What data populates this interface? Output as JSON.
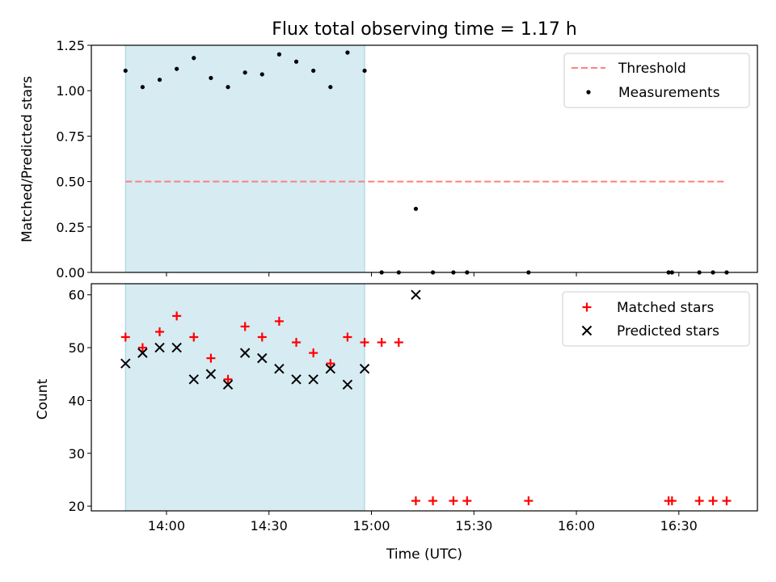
{
  "chart_data": [
    {
      "type": "scatter",
      "title": "Flux total observing time = 1.17 h",
      "ylabel": "Matched/Predicted stars",
      "xlabel": "",
      "ylim": [
        0,
        1.25
      ],
      "yticks": [
        0.0,
        0.25,
        0.5,
        0.75,
        1.0,
        1.25
      ],
      "ytick_labels": [
        "0.00",
        "0.25",
        "0.50",
        "0.75",
        "1.00",
        "1.25"
      ],
      "xlim": [
        "13:38",
        "16:53"
      ],
      "shaded_region": [
        "13:48",
        "14:58"
      ],
      "grid": false,
      "legend": "top-right",
      "threshold": {
        "name": "Threshold",
        "y": 0.5,
        "x_range": [
          "13:48",
          "16:44"
        ],
        "color": "#ff7f7f"
      },
      "series": [
        {
          "name": "Measurements",
          "color": "#000000",
          "x": [
            "13:48",
            "13:53",
            "13:58",
            "14:03",
            "14:08",
            "14:13",
            "14:18",
            "14:23",
            "14:28",
            "14:33",
            "14:38",
            "14:43",
            "14:48",
            "14:53",
            "14:58",
            "15:03",
            "15:08",
            "15:13",
            "15:18",
            "15:24",
            "15:28",
            "15:46",
            "16:27",
            "16:28",
            "16:36",
            "16:40",
            "16:44"
          ],
          "y": [
            1.11,
            1.02,
            1.06,
            1.12,
            1.18,
            1.07,
            1.02,
            1.1,
            1.09,
            1.2,
            1.16,
            1.11,
            1.02,
            1.21,
            1.11,
            0.0,
            0.0,
            0.35,
            0.0,
            0.0,
            0.0,
            0.0,
            0.0,
            0.0,
            0.0,
            0.0,
            0.0
          ]
        }
      ]
    },
    {
      "type": "scatter",
      "title": "",
      "ylabel": "Count",
      "xlabel": "Time (UTC)",
      "ylim": [
        19.1,
        62.1
      ],
      "yticks": [
        20,
        30,
        40,
        50,
        60
      ],
      "ytick_labels": [
        "20",
        "30",
        "40",
        "50",
        "60"
      ],
      "xlim": [
        "13:38",
        "16:53"
      ],
      "xticks": [
        "14:00",
        "14:30",
        "15:00",
        "15:30",
        "16:00",
        "16:30"
      ],
      "shaded_region": [
        "13:48",
        "14:58"
      ],
      "grid": false,
      "legend": "top-right",
      "series": [
        {
          "name": "Matched stars",
          "color": "#ff0000",
          "marker": "+",
          "x": [
            "13:48",
            "13:53",
            "13:58",
            "14:03",
            "14:08",
            "14:13",
            "14:18",
            "14:23",
            "14:28",
            "14:33",
            "14:38",
            "14:43",
            "14:48",
            "14:53",
            "14:58",
            "15:03",
            "15:08",
            "15:13",
            "15:18",
            "15:24",
            "15:28",
            "15:46",
            "16:27",
            "16:28",
            "16:36",
            "16:40",
            "16:44"
          ],
          "y": [
            52,
            50,
            53,
            56,
            52,
            48,
            44,
            54,
            52,
            55,
            51,
            49,
            47,
            52,
            51,
            51,
            51,
            21,
            21,
            21,
            21,
            21,
            21,
            21,
            21,
            21,
            21
          ]
        },
        {
          "name": "Predicted stars",
          "color": "#000000",
          "marker": "x",
          "x": [
            "13:48",
            "13:53",
            "13:58",
            "14:03",
            "14:08",
            "14:13",
            "14:18",
            "14:23",
            "14:28",
            "14:33",
            "14:38",
            "14:43",
            "14:48",
            "14:53",
            "14:58",
            "15:13"
          ],
          "y": [
            47,
            49,
            50,
            50,
            44,
            45,
            43,
            49,
            48,
            46,
            44,
            44,
            46,
            43,
            46,
            60
          ]
        }
      ]
    }
  ]
}
